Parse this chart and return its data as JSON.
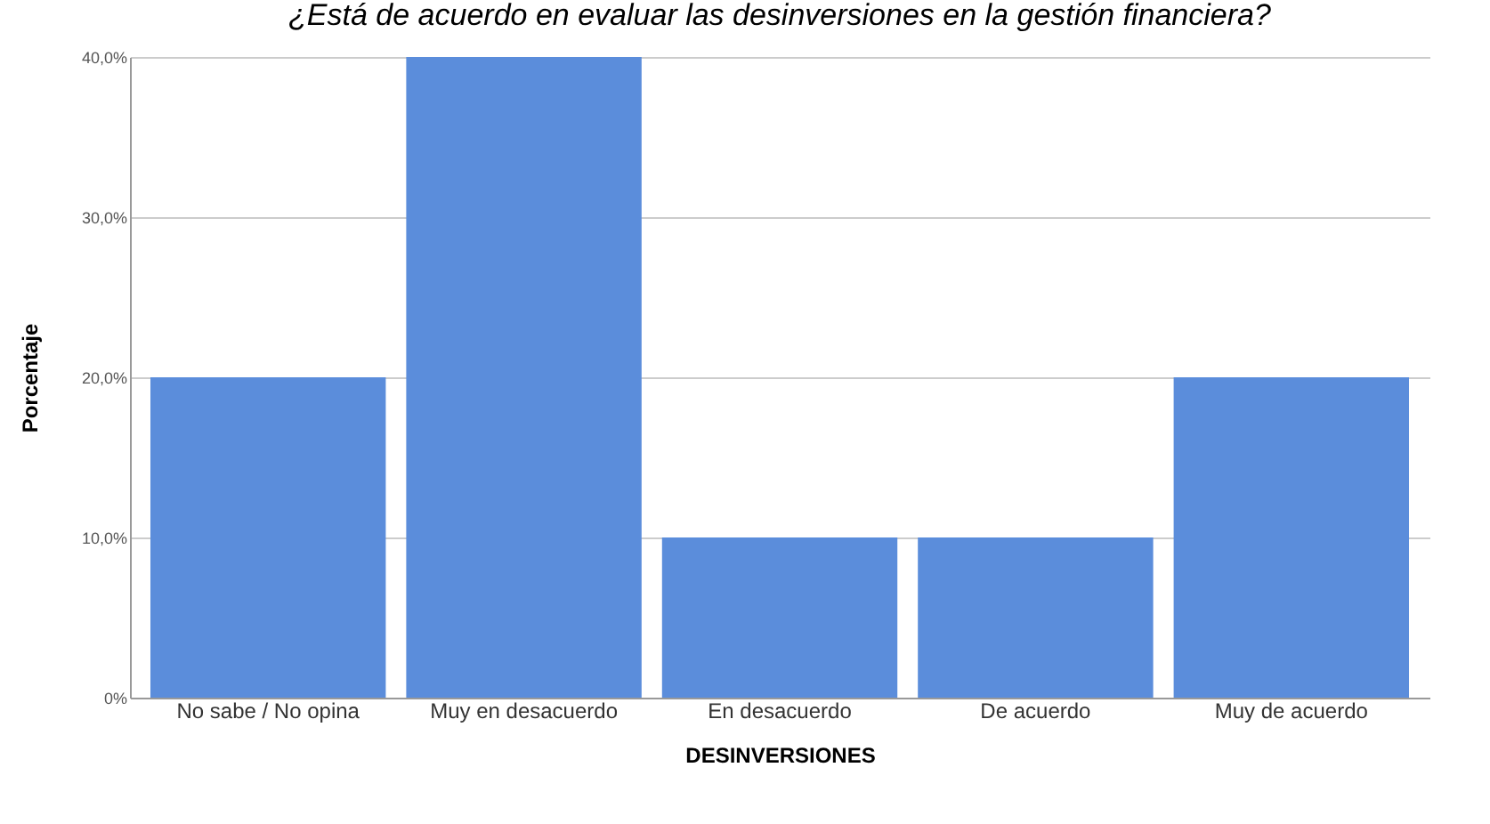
{
  "chart_data": {
    "type": "bar",
    "title": "¿Está de acuerdo en evaluar las desinversiones en la gestión financiera?",
    "xlabel": "DESINVERSIONES",
    "ylabel": "Porcentaje",
    "categories": [
      "No sabe / No opina",
      "Muy en desacuerdo",
      "En desacuerdo",
      "De acuerdo",
      "Muy de acuerdo"
    ],
    "values": [
      20,
      40,
      10,
      10,
      20
    ],
    "color": "#5b8ddb",
    "ylim": [
      0,
      40
    ],
    "yticks": [
      {
        "value": 0,
        "label": "0%"
      },
      {
        "value": 10,
        "label": "10,0%"
      },
      {
        "value": 20,
        "label": "20,0%"
      },
      {
        "value": 30,
        "label": "30,0%"
      },
      {
        "value": 40,
        "label": "40,0%"
      }
    ],
    "grid": "y"
  }
}
